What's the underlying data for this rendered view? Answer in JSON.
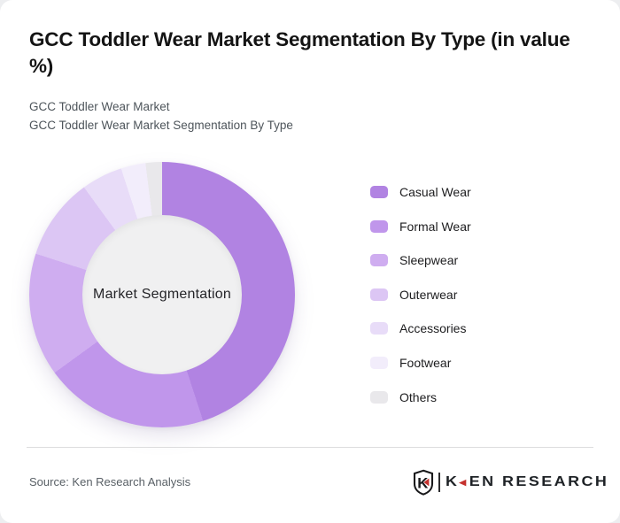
{
  "page": {
    "background": "#edeef0",
    "card_background": "#ffffff"
  },
  "header": {
    "title": "GCC Toddler Wear Market Segmentation By Type (in value %)",
    "subtitle_line1": "GCC Toddler Wear Market",
    "subtitle_line2": "GCC Toddler Wear Market Segmentation By Type"
  },
  "chart_data": {
    "type": "donut",
    "title": "GCC Toddler Wear Market Segmentation By Type (in value %)",
    "center_label": "Market Segmentation",
    "unit": "value %",
    "start_angle_deg": 0,
    "clockwise": true,
    "inner_radius_ratio": 0.6,
    "legend_position": "right",
    "categories": [
      "Casual Wear",
      "Formal Wear",
      "Sleepwear",
      "Outerwear",
      "Accessories",
      "Footwear",
      "Others"
    ],
    "values": [
      45,
      20,
      15,
      10,
      5,
      3,
      2
    ],
    "colors": [
      "#b183e2",
      "#c096eb",
      "#cfadf0",
      "#dcc6f4",
      "#e8dcf8",
      "#f2edfb",
      "#e9e8eb"
    ],
    "hole_color": "#f0f0f1"
  },
  "footer": {
    "source": "Source: Ken Research Analysis",
    "logo": {
      "shield_letter": "K",
      "wordmark_k": "K",
      "wordmark_rest": "EN RESEARCH",
      "accent_color": "#c5322e"
    }
  }
}
